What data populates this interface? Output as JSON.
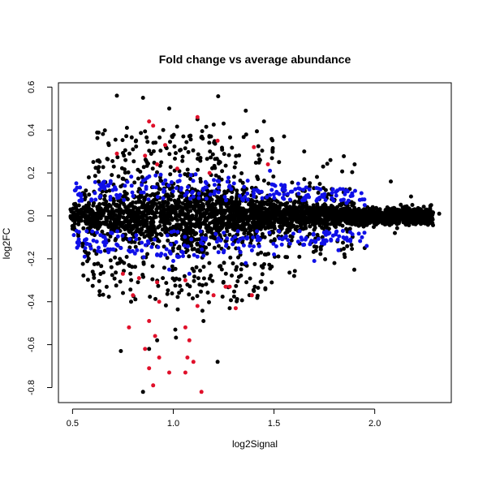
{
  "chart_data": {
    "type": "scatter",
    "title": "Fold change vs average abundance",
    "xlabel": "log2Signal",
    "ylabel": "log2FC",
    "xlim": [
      0.43,
      2.38
    ],
    "ylim": [
      -0.87,
      0.62
    ],
    "x_ticks": [
      0.5,
      1.0,
      1.5,
      2.0
    ],
    "x_tick_labels": [
      "0.5",
      "1.0",
      "1.5",
      "2.0"
    ],
    "y_ticks": [
      -0.8,
      -0.6,
      -0.4,
      -0.2,
      0.0,
      0.2,
      0.4,
      0.6
    ],
    "y_tick_labels": [
      "-0.8",
      "-0.6",
      "-0.4",
      "-0.2",
      "0.0",
      "0.2",
      "0.4",
      "0.6"
    ],
    "grid": false,
    "colors": {
      "background": "#000000",
      "significant": "#e0102a",
      "moderate": "#1010e8"
    },
    "series": [
      {
        "color": "#000000",
        "points": [
          [
            0.72,
            0.56
          ],
          [
            0.85,
            0.55
          ],
          [
            0.98,
            0.5
          ],
          [
            1.36,
            0.49
          ],
          [
            1.45,
            0.44
          ],
          [
            1.12,
            0.45
          ],
          [
            0.77,
            0.41
          ],
          [
            0.95,
            0.4
          ],
          [
            1.25,
            0.43
          ],
          [
            1.55,
            0.37
          ],
          [
            0.68,
            0.33
          ],
          [
            1.65,
            0.3
          ],
          [
            1.78,
            0.26
          ],
          [
            1.9,
            0.24
          ],
          [
            2.08,
            0.16
          ],
          [
            2.18,
            0.09
          ],
          [
            2.28,
            0.05
          ],
          [
            2.32,
            0.01
          ],
          [
            2.25,
            -0.02
          ],
          [
            2.1,
            -0.08
          ],
          [
            1.95,
            -0.15
          ],
          [
            1.8,
            -0.22
          ],
          [
            1.6,
            -0.28
          ],
          [
            1.4,
            -0.35
          ],
          [
            1.28,
            -0.43
          ],
          [
            1.15,
            -0.49
          ],
          [
            1.01,
            -0.53
          ],
          [
            0.92,
            -0.58
          ],
          [
            0.74,
            -0.63
          ],
          [
            0.88,
            -0.62
          ],
          [
            1.22,
            -0.68
          ],
          [
            0.85,
            -0.82
          ],
          [
            0.6,
            -0.26
          ],
          [
            0.55,
            -0.13
          ],
          [
            0.5,
            -0.06
          ],
          [
            0.49,
            0.03
          ],
          [
            0.56,
            0.1
          ],
          [
            0.63,
            0.16
          ],
          [
            0.8,
            0.31
          ],
          [
            1.05,
            0.37
          ]
        ]
      },
      {
        "color": "#e0102a",
        "points": [
          [
            0.88,
            0.44
          ],
          [
            1.12,
            0.46
          ],
          [
            0.9,
            0.42
          ],
          [
            1.22,
            0.35
          ],
          [
            0.96,
            0.33
          ],
          [
            1.4,
            0.32
          ],
          [
            0.86,
            0.28
          ],
          [
            0.92,
            0.24
          ],
          [
            1.02,
            0.22
          ],
          [
            1.18,
            0.2
          ],
          [
            1.47,
            0.24
          ],
          [
            0.72,
            0.29
          ],
          [
            0.75,
            -0.27
          ],
          [
            0.83,
            -0.29
          ],
          [
            0.92,
            -0.31
          ],
          [
            1.06,
            -0.3
          ],
          [
            1.2,
            -0.37
          ],
          [
            1.28,
            -0.33
          ],
          [
            0.8,
            -0.37
          ],
          [
            0.93,
            -0.4
          ],
          [
            1.12,
            -0.42
          ],
          [
            1.31,
            -0.43
          ],
          [
            1.39,
            -0.37
          ],
          [
            0.78,
            -0.52
          ],
          [
            0.88,
            -0.49
          ],
          [
            0.91,
            -0.56
          ],
          [
            1.06,
            -0.52
          ],
          [
            1.08,
            -0.58
          ],
          [
            0.86,
            -0.62
          ],
          [
            0.93,
            -0.66
          ],
          [
            1.07,
            -0.66
          ],
          [
            0.88,
            -0.71
          ],
          [
            1.1,
            -0.68
          ],
          [
            0.98,
            -0.73
          ],
          [
            1.06,
            -0.73
          ],
          [
            0.9,
            -0.79
          ],
          [
            1.14,
            -0.82
          ],
          [
            1.26,
            -0.33
          ]
        ]
      },
      {
        "color": "#1010e8",
        "points": [
          [
            0.52,
            -0.07
          ],
          [
            0.56,
            -0.19
          ],
          [
            0.62,
            -0.12
          ],
          [
            0.7,
            0.12
          ],
          [
            0.76,
            0.14
          ],
          [
            0.84,
            0.11
          ],
          [
            0.95,
            0.15
          ],
          [
            1.04,
            0.13
          ],
          [
            1.15,
            0.12
          ],
          [
            1.28,
            0.14
          ],
          [
            1.4,
            0.12
          ],
          [
            1.55,
            0.1
          ],
          [
            1.72,
            0.08
          ],
          [
            1.86,
            0.06
          ],
          [
            0.66,
            -0.1
          ],
          [
            0.74,
            -0.15
          ],
          [
            0.82,
            -0.16
          ],
          [
            0.92,
            -0.18
          ],
          [
            1.0,
            -0.21
          ],
          [
            1.12,
            -0.19
          ],
          [
            1.25,
            -0.17
          ],
          [
            1.38,
            -0.14
          ],
          [
            1.5,
            -0.18
          ],
          [
            1.62,
            -0.12
          ],
          [
            1.75,
            -0.13
          ],
          [
            1.88,
            -0.11
          ],
          [
            1.96,
            -0.14
          ],
          [
            1.82,
            -0.16
          ],
          [
            1.7,
            -0.21
          ],
          [
            1.36,
            -0.22
          ],
          [
            1.08,
            -0.27
          ],
          [
            0.98,
            -0.25
          ],
          [
            1.48,
            0.21
          ],
          [
            1.62,
            0.15
          ],
          [
            1.95,
            0.05
          ]
        ]
      }
    ]
  }
}
